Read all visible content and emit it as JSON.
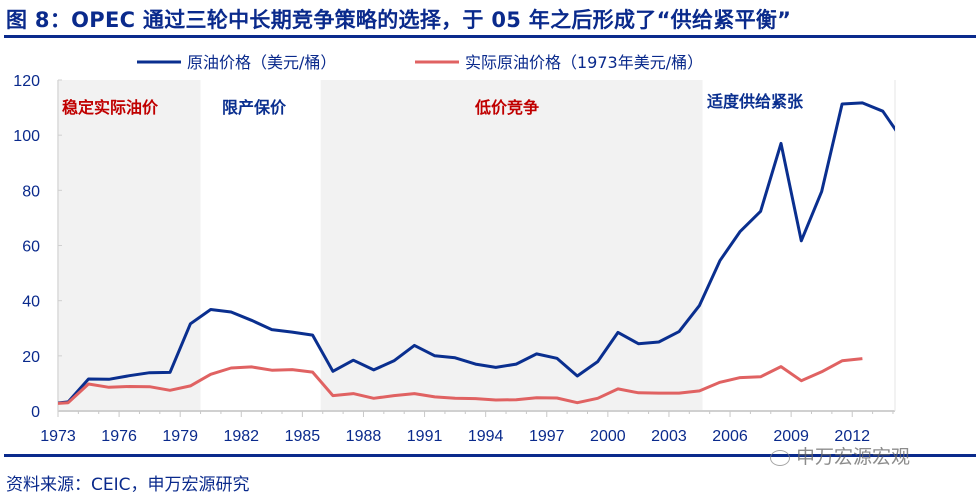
{
  "title": "图 8：OPEC 通过三轮中长期竞争策略的选择，于 05 年之后形成了“供给紧平衡”",
  "source": "资料来源：CEIC，申万宏源研究",
  "watermark": "申万宏源宏观",
  "chart_data": {
    "type": "line",
    "xlim": [
      1973,
      2014.1
    ],
    "ylim": [
      0,
      120
    ],
    "x_ticks": [
      "1973",
      "1976",
      "1979",
      "1982",
      "1985",
      "1988",
      "1991",
      "1994",
      "1997",
      "2000",
      "2003",
      "2006",
      "2009",
      "2012"
    ],
    "y_ticks": [
      "0",
      "20",
      "40",
      "60",
      "80",
      "100",
      "120"
    ],
    "grid": false,
    "legend_position": "top",
    "x": [
      1972,
      1973,
      1974,
      1975,
      1976,
      1977,
      1978,
      1979,
      1980,
      1981,
      1982,
      1983,
      1984,
      1985,
      1986,
      1987,
      1988,
      1989,
      1990,
      1991,
      1992,
      1993,
      1994,
      1995,
      1996,
      1997,
      1998,
      1999,
      2000,
      2001,
      2002,
      2003,
      2004,
      2005,
      2006,
      2007,
      2008,
      2009,
      2010,
      2011,
      2012,
      2013,
      2014
    ],
    "series": [
      {
        "name": "原油价格（美元/桶）",
        "color": "#0a2f8f",
        "values": [
          2.5,
          3.3,
          11.6,
          11.5,
          12.8,
          13.9,
          14.0,
          31.6,
          36.8,
          35.9,
          32.9,
          29.5,
          28.6,
          27.5,
          14.4,
          18.4,
          14.9,
          18.2,
          23.8,
          20.0,
          19.3,
          17.0,
          15.8,
          17.0,
          20.7,
          19.1,
          12.7,
          17.9,
          28.5,
          24.4,
          25.0,
          28.8,
          38.3,
          54.5,
          65.1,
          72.4,
          97.0,
          61.7,
          79.6,
          111.3,
          111.7,
          108.7,
          98.0
        ]
      },
      {
        "name": "实际原油价格（1973年美元/桶）",
        "color": "#e06262",
        "values": [
          2.5,
          3.0,
          9.8,
          8.6,
          8.9,
          8.8,
          7.5,
          9.1,
          13.3,
          15.6,
          16.0,
          14.8,
          15.0,
          14.1,
          5.6,
          6.3,
          4.6,
          5.6,
          6.3,
          5.1,
          4.6,
          4.5,
          4.0,
          4.1,
          4.8,
          4.7,
          3.0,
          4.6,
          8.0,
          6.6,
          6.5,
          6.5,
          7.3,
          10.4,
          12.1,
          12.4,
          16.1,
          11.0,
          14.2,
          18.2,
          19.0,
          null,
          null
        ]
      }
    ],
    "regions": [
      {
        "label": "稳定实际油价",
        "from": 1973,
        "to": 1980,
        "shaded": true,
        "label_color": "#c00000"
      },
      {
        "label": "限产保价",
        "from": 1980,
        "to": 1985.9,
        "shaded": false,
        "label_color": "#0a2f8f"
      },
      {
        "label": "低价竞争",
        "from": 1985.9,
        "to": 2004.65,
        "shaded": true,
        "label_color": "#c00000"
      },
      {
        "label": "适度供给紧张",
        "from": 2004.65,
        "to": 2014.1,
        "shaded": false,
        "label_color": "#0a2f8f"
      }
    ],
    "shade_color": "#f2f2f2"
  }
}
